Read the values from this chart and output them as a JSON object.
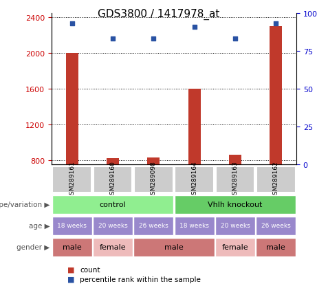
{
  "title": "GDS3800 / 1417978_at",
  "samples": [
    "GSM289161",
    "GSM289160",
    "GSM289098",
    "GSM289164",
    "GSM289163",
    "GSM289162"
  ],
  "counts": [
    2000,
    820,
    825,
    1600,
    860,
    2300
  ],
  "percentiles": [
    93,
    83,
    83,
    91,
    83,
    93
  ],
  "ylim_left": [
    750,
    2450
  ],
  "ylim_right": [
    0,
    100
  ],
  "yticks_left": [
    800,
    1200,
    1600,
    2000,
    2400
  ],
  "yticks_right": [
    0,
    25,
    50,
    75,
    100
  ],
  "bar_color": "#c0392b",
  "dot_color": "#2952a3",
  "genotype_groups": [
    {
      "label": "control",
      "color": "#90ee90",
      "start": 0,
      "end": 3
    },
    {
      "label": "Vhlh knockout",
      "color": "#66cc66",
      "start": 3,
      "end": 6
    }
  ],
  "ages": [
    "18 weeks",
    "20 weeks",
    "26 weeks",
    "18 weeks",
    "20 weeks",
    "26 weeks"
  ],
  "age_color": "#9988cc",
  "genders": [
    {
      "label": "male",
      "start": 0,
      "end": 1,
      "color": "#cc7777"
    },
    {
      "label": "female",
      "start": 1,
      "end": 2,
      "color": "#eebbbb"
    },
    {
      "label": "male",
      "start": 2,
      "end": 4,
      "color": "#cc7777"
    },
    {
      "label": "female",
      "start": 4,
      "end": 5,
      "color": "#eebbbb"
    },
    {
      "label": "male",
      "start": 5,
      "end": 6,
      "color": "#cc7777"
    }
  ],
  "label_color_left": "#cc0000",
  "label_color_right": "#0000cc",
  "sample_box_color": "#cccccc",
  "bar_width": 0.3
}
